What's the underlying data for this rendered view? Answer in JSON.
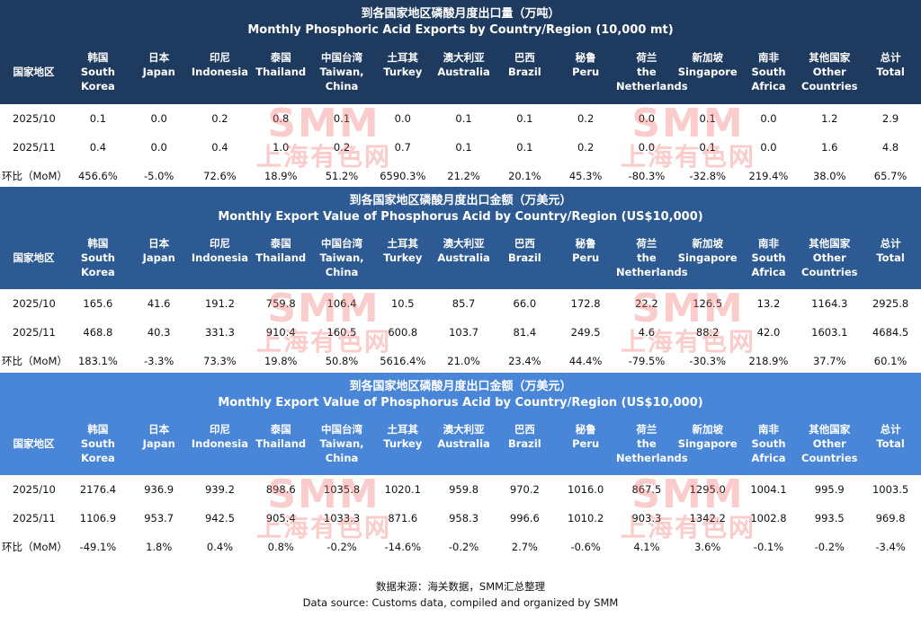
{
  "chart_data": [
    {
      "type": "table",
      "title_cn": "到各国家地区磷酸月度出口量（万吨）",
      "title_en": "Monthly Phosphoric Acid Exports by Country/Region (10,000 mt)",
      "row_header_label": "国家地区",
      "columns": [
        {
          "cn": "韩国",
          "en": "South Korea"
        },
        {
          "cn": "日本",
          "en": "Japan"
        },
        {
          "cn": "印尼",
          "en": "Indonesia"
        },
        {
          "cn": "泰国",
          "en": "Thailand"
        },
        {
          "cn": "中国台湾",
          "en": "Taiwan, China"
        },
        {
          "cn": "土耳其",
          "en": "Turkey"
        },
        {
          "cn": "澳大利亚",
          "en": "Australia"
        },
        {
          "cn": "巴西",
          "en": "Brazil"
        },
        {
          "cn": "秘鲁",
          "en": "Peru"
        },
        {
          "cn": "荷兰",
          "en": "the Netherlands"
        },
        {
          "cn": "新加坡",
          "en": "Singapore"
        },
        {
          "cn": "南非",
          "en": "South Africa"
        },
        {
          "cn": "其他国家",
          "en": "Other Countries"
        },
        {
          "cn": "总计",
          "en": "Total"
        }
      ],
      "rows": [
        {
          "label": "2025/10",
          "values": [
            "0.1",
            "0.0",
            "0.2",
            "0.8",
            "0.1",
            "0.0",
            "0.1",
            "0.1",
            "0.2",
            "0.0",
            "0.1",
            "0.0",
            "1.2",
            "2.9"
          ]
        },
        {
          "label": "2025/11",
          "values": [
            "0.4",
            "0.0",
            "0.4",
            "1.0",
            "0.2",
            "0.7",
            "0.1",
            "0.1",
            "0.2",
            "0.0",
            "0.1",
            "0.0",
            "1.6",
            "4.8"
          ]
        },
        {
          "label": "环比（MoM）",
          "values": [
            "456.6%",
            "-5.0%",
            "72.6%",
            "18.9%",
            "51.2%",
            "6590.3%",
            "21.2%",
            "20.1%",
            "45.3%",
            "-80.3%",
            "-32.8%",
            "219.4%",
            "38.0%",
            "65.7%"
          ]
        }
      ]
    },
    {
      "type": "table",
      "title_cn": "到各国家地区磷酸月度出口金额（万美元）",
      "title_en": "Monthly Export Value of Phosphorus Acid by Country/Region (US$10,000)",
      "row_header_label": "国家地区",
      "columns": [
        {
          "cn": "韩国",
          "en": "South Korea"
        },
        {
          "cn": "日本",
          "en": "Japan"
        },
        {
          "cn": "印尼",
          "en": "Indonesia"
        },
        {
          "cn": "泰国",
          "en": "Thailand"
        },
        {
          "cn": "中国台湾",
          "en": "Taiwan, China"
        },
        {
          "cn": "土耳其",
          "en": "Turkey"
        },
        {
          "cn": "澳大利亚",
          "en": "Australia"
        },
        {
          "cn": "巴西",
          "en": "Brazil"
        },
        {
          "cn": "秘鲁",
          "en": "Peru"
        },
        {
          "cn": "荷兰",
          "en": "the Netherlands"
        },
        {
          "cn": "新加坡",
          "en": "Singapore"
        },
        {
          "cn": "南非",
          "en": "South Africa"
        },
        {
          "cn": "其他国家",
          "en": "Other Countries"
        },
        {
          "cn": "总计",
          "en": "Total"
        }
      ],
      "rows": [
        {
          "label": "2025/10",
          "values": [
            "165.6",
            "41.6",
            "191.2",
            "759.8",
            "106.4",
            "10.5",
            "85.7",
            "66.0",
            "172.8",
            "22.2",
            "126.5",
            "13.2",
            "1164.3",
            "2925.8"
          ]
        },
        {
          "label": "2025/11",
          "values": [
            "468.8",
            "40.3",
            "331.3",
            "910.4",
            "160.5",
            "600.8",
            "103.7",
            "81.4",
            "249.5",
            "4.6",
            "88.2",
            "42.0",
            "1603.1",
            "4684.5"
          ]
        },
        {
          "label": "环比（MoM）",
          "values": [
            "183.1%",
            "-3.3%",
            "73.3%",
            "19.8%",
            "50.8%",
            "5616.4%",
            "21.0%",
            "23.4%",
            "44.4%",
            "-79.5%",
            "-30.3%",
            "218.9%",
            "37.7%",
            "60.1%"
          ]
        }
      ]
    },
    {
      "type": "table",
      "title_cn": "到各国家地区磷酸月度出口金额（万美元）",
      "title_en": "Monthly Export Value of Phosphorus Acid by Country/Region (US$10,000)",
      "row_header_label": "国家地区",
      "columns": [
        {
          "cn": "韩国",
          "en": "South Korea"
        },
        {
          "cn": "日本",
          "en": "Japan"
        },
        {
          "cn": "印尼",
          "en": "Indonesia"
        },
        {
          "cn": "泰国",
          "en": "Thailand"
        },
        {
          "cn": "中国台湾",
          "en": "Taiwan, China"
        },
        {
          "cn": "土耳其",
          "en": "Turkey"
        },
        {
          "cn": "澳大利亚",
          "en": "Australia"
        },
        {
          "cn": "巴西",
          "en": "Brazil"
        },
        {
          "cn": "秘鲁",
          "en": "Peru"
        },
        {
          "cn": "荷兰",
          "en": "the Netherlands"
        },
        {
          "cn": "新加坡",
          "en": "Singapore"
        },
        {
          "cn": "南非",
          "en": "South Africa"
        },
        {
          "cn": "其他国家",
          "en": "Other Countries"
        },
        {
          "cn": "总计",
          "en": "Total"
        }
      ],
      "rows": [
        {
          "label": "2025/10",
          "values": [
            "2176.4",
            "936.9",
            "939.2",
            "898.6",
            "1035.8",
            "1020.1",
            "959.8",
            "970.2",
            "1016.0",
            "867.5",
            "1295.0",
            "1004.1",
            "995.9",
            "1003.5"
          ]
        },
        {
          "label": "2025/11",
          "values": [
            "1106.9",
            "953.7",
            "942.5",
            "905.4",
            "1033.3",
            "871.6",
            "958.3",
            "996.6",
            "1010.2",
            "903.3",
            "1342.2",
            "1002.8",
            "993.5",
            "969.8"
          ]
        },
        {
          "label": "环比（MoM）",
          "values": [
            "-49.1%",
            "1.8%",
            "0.4%",
            "0.8%",
            "-0.2%",
            "-14.6%",
            "-0.2%",
            "2.7%",
            "-0.6%",
            "4.1%",
            "3.6%",
            "-0.1%",
            "-0.2%",
            "-3.4%"
          ]
        }
      ]
    }
  ],
  "colors": {
    "block1": "#1f3a5f",
    "block2": "#2d5a92",
    "block3": "#4a86d8",
    "watermark": "#f06e6e"
  },
  "watermark": {
    "line1": "SMM",
    "line2": "上海有色网"
  },
  "footer": {
    "cn": "数据来源：海关数据，SMM汇总整理",
    "en": "Data source: Customs data, compiled and organized by SMM"
  }
}
